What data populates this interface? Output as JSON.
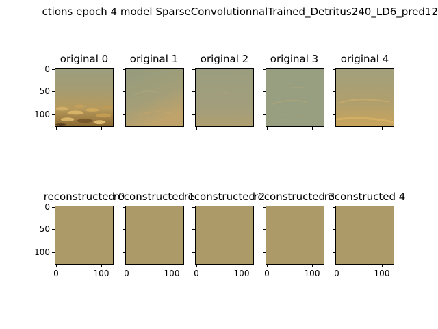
{
  "figure": {
    "title": "ctions epoch 4 model SparseConvolutionnalTrained_Detritus240_LD6_pred12"
  },
  "rows": [
    {
      "titles": [
        "original 0",
        "original 1",
        "original 2",
        "original 3",
        "original 4"
      ]
    },
    {
      "titles": [
        "reconstructed 0",
        "reconstructed 1",
        "reconstructed 2",
        "reconstructed 3",
        "reconstructed 4"
      ]
    }
  ],
  "axes": {
    "y_ticks": [
      "0",
      "50",
      "100"
    ],
    "x_ticks": [
      "0",
      "100"
    ]
  },
  "colors": {
    "reconstructed_fill": "#ad9a69",
    "original_base": "#9ba081"
  }
}
